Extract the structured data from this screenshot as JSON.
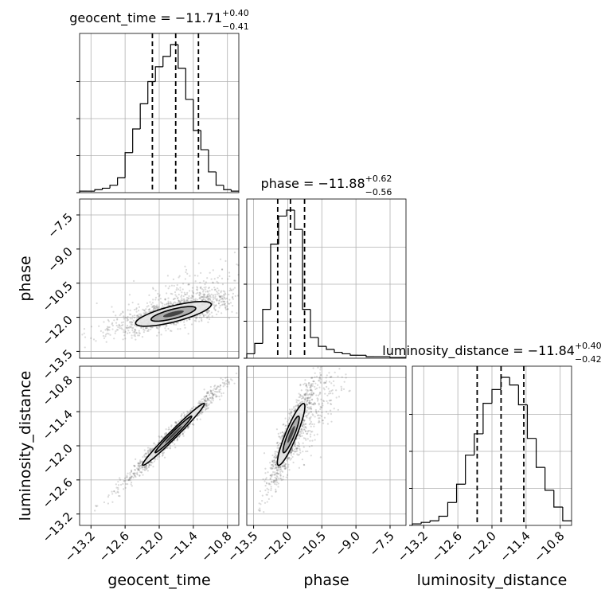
{
  "chart_data": {
    "type": "corner",
    "parameters": [
      "geocent_time",
      "phase",
      "luminosity_distance"
    ],
    "marginals": [
      {
        "parameter": "geocent_time",
        "title_name": "geocent_time",
        "median": "−11.71",
        "plus": "+0.40",
        "minus": "−0.41",
        "quantiles": [
          -12.12,
          -11.71,
          -11.31
        ],
        "range": [
          -13.4,
          -10.6
        ],
        "hist": [
          1,
          1,
          2,
          3,
          5,
          10,
          27,
          43,
          60,
          75,
          85,
          92,
          100,
          84,
          63,
          42,
          29,
          14,
          5,
          2,
          1
        ]
      },
      {
        "parameter": "phase",
        "title_name": "phase",
        "median": "−11.88",
        "plus": "+0.62",
        "minus": "−0.56",
        "quantiles": [
          -12.44,
          -11.88,
          -11.26
        ],
        "range": [
          -13.8,
          -6.8
        ],
        "hist": [
          3,
          10,
          33,
          77,
          96,
          100,
          87,
          33,
          14,
          8,
          6,
          4,
          3,
          2,
          2,
          1,
          1,
          1,
          0.5,
          0.5
        ]
      },
      {
        "parameter": "luminosity_distance",
        "title_name": "luminosity_distance",
        "median": "−11.84",
        "plus": "+0.40",
        "minus": "−0.42",
        "quantiles": [
          -12.26,
          -11.84,
          -11.44
        ],
        "range": [
          -13.4,
          -10.6
        ],
        "hist": [
          1,
          2,
          3,
          6,
          15,
          27,
          46,
          60,
          80,
          89,
          97,
          92,
          79,
          57,
          38,
          23,
          12,
          3
        ]
      }
    ],
    "axes": {
      "geocent_time": {
        "range": [
          -13.4,
          -10.6
        ],
        "ticks": [
          -13.2,
          -12.6,
          -12.0,
          -11.4,
          -10.8
        ],
        "tick_labels": [
          "−13.2",
          "−12.6",
          "−12.0",
          "−11.4",
          "−10.8"
        ]
      },
      "phase": {
        "range": [
          -13.8,
          -6.8
        ],
        "ticks": [
          -13.5,
          -12.0,
          -10.5,
          -9.0,
          -7.5
        ],
        "tick_labels": [
          "−13.5",
          "−12.0",
          "−10.5",
          "−9.0",
          "−7.5"
        ]
      },
      "luminosity_distance": {
        "range": [
          -13.4,
          -10.6
        ],
        "ticks": [
          -13.2,
          -12.6,
          -12.0,
          -11.4,
          -10.8
        ],
        "tick_labels": [
          "−13.2",
          "−12.6",
          "−12.0",
          "−11.4",
          "−10.8"
        ]
      }
    },
    "joint": [
      {
        "x": "geocent_time",
        "y": "phase",
        "center": [
          -11.75,
          -11.85
        ],
        "spread": [
          0.55,
          0.45
        ],
        "rho": 0.75,
        "tail": true
      },
      {
        "x": "geocent_time",
        "y": "luminosity_distance",
        "center": [
          -11.75,
          -11.8
        ],
        "spread": [
          0.45,
          0.45
        ],
        "rho": 0.985,
        "tail": false
      },
      {
        "x": "phase",
        "y": "luminosity_distance",
        "center": [
          -11.85,
          -11.8
        ],
        "spread": [
          0.5,
          0.45
        ],
        "rho": 0.9,
        "tail": true
      }
    ],
    "grid": true,
    "colors": {
      "line": "#000000",
      "scatter": "#555555",
      "grid": "#b0b0b0",
      "contour_fill": [
        "#e6e6e6",
        "#a9a9a9",
        "#3a3a3a"
      ]
    }
  }
}
